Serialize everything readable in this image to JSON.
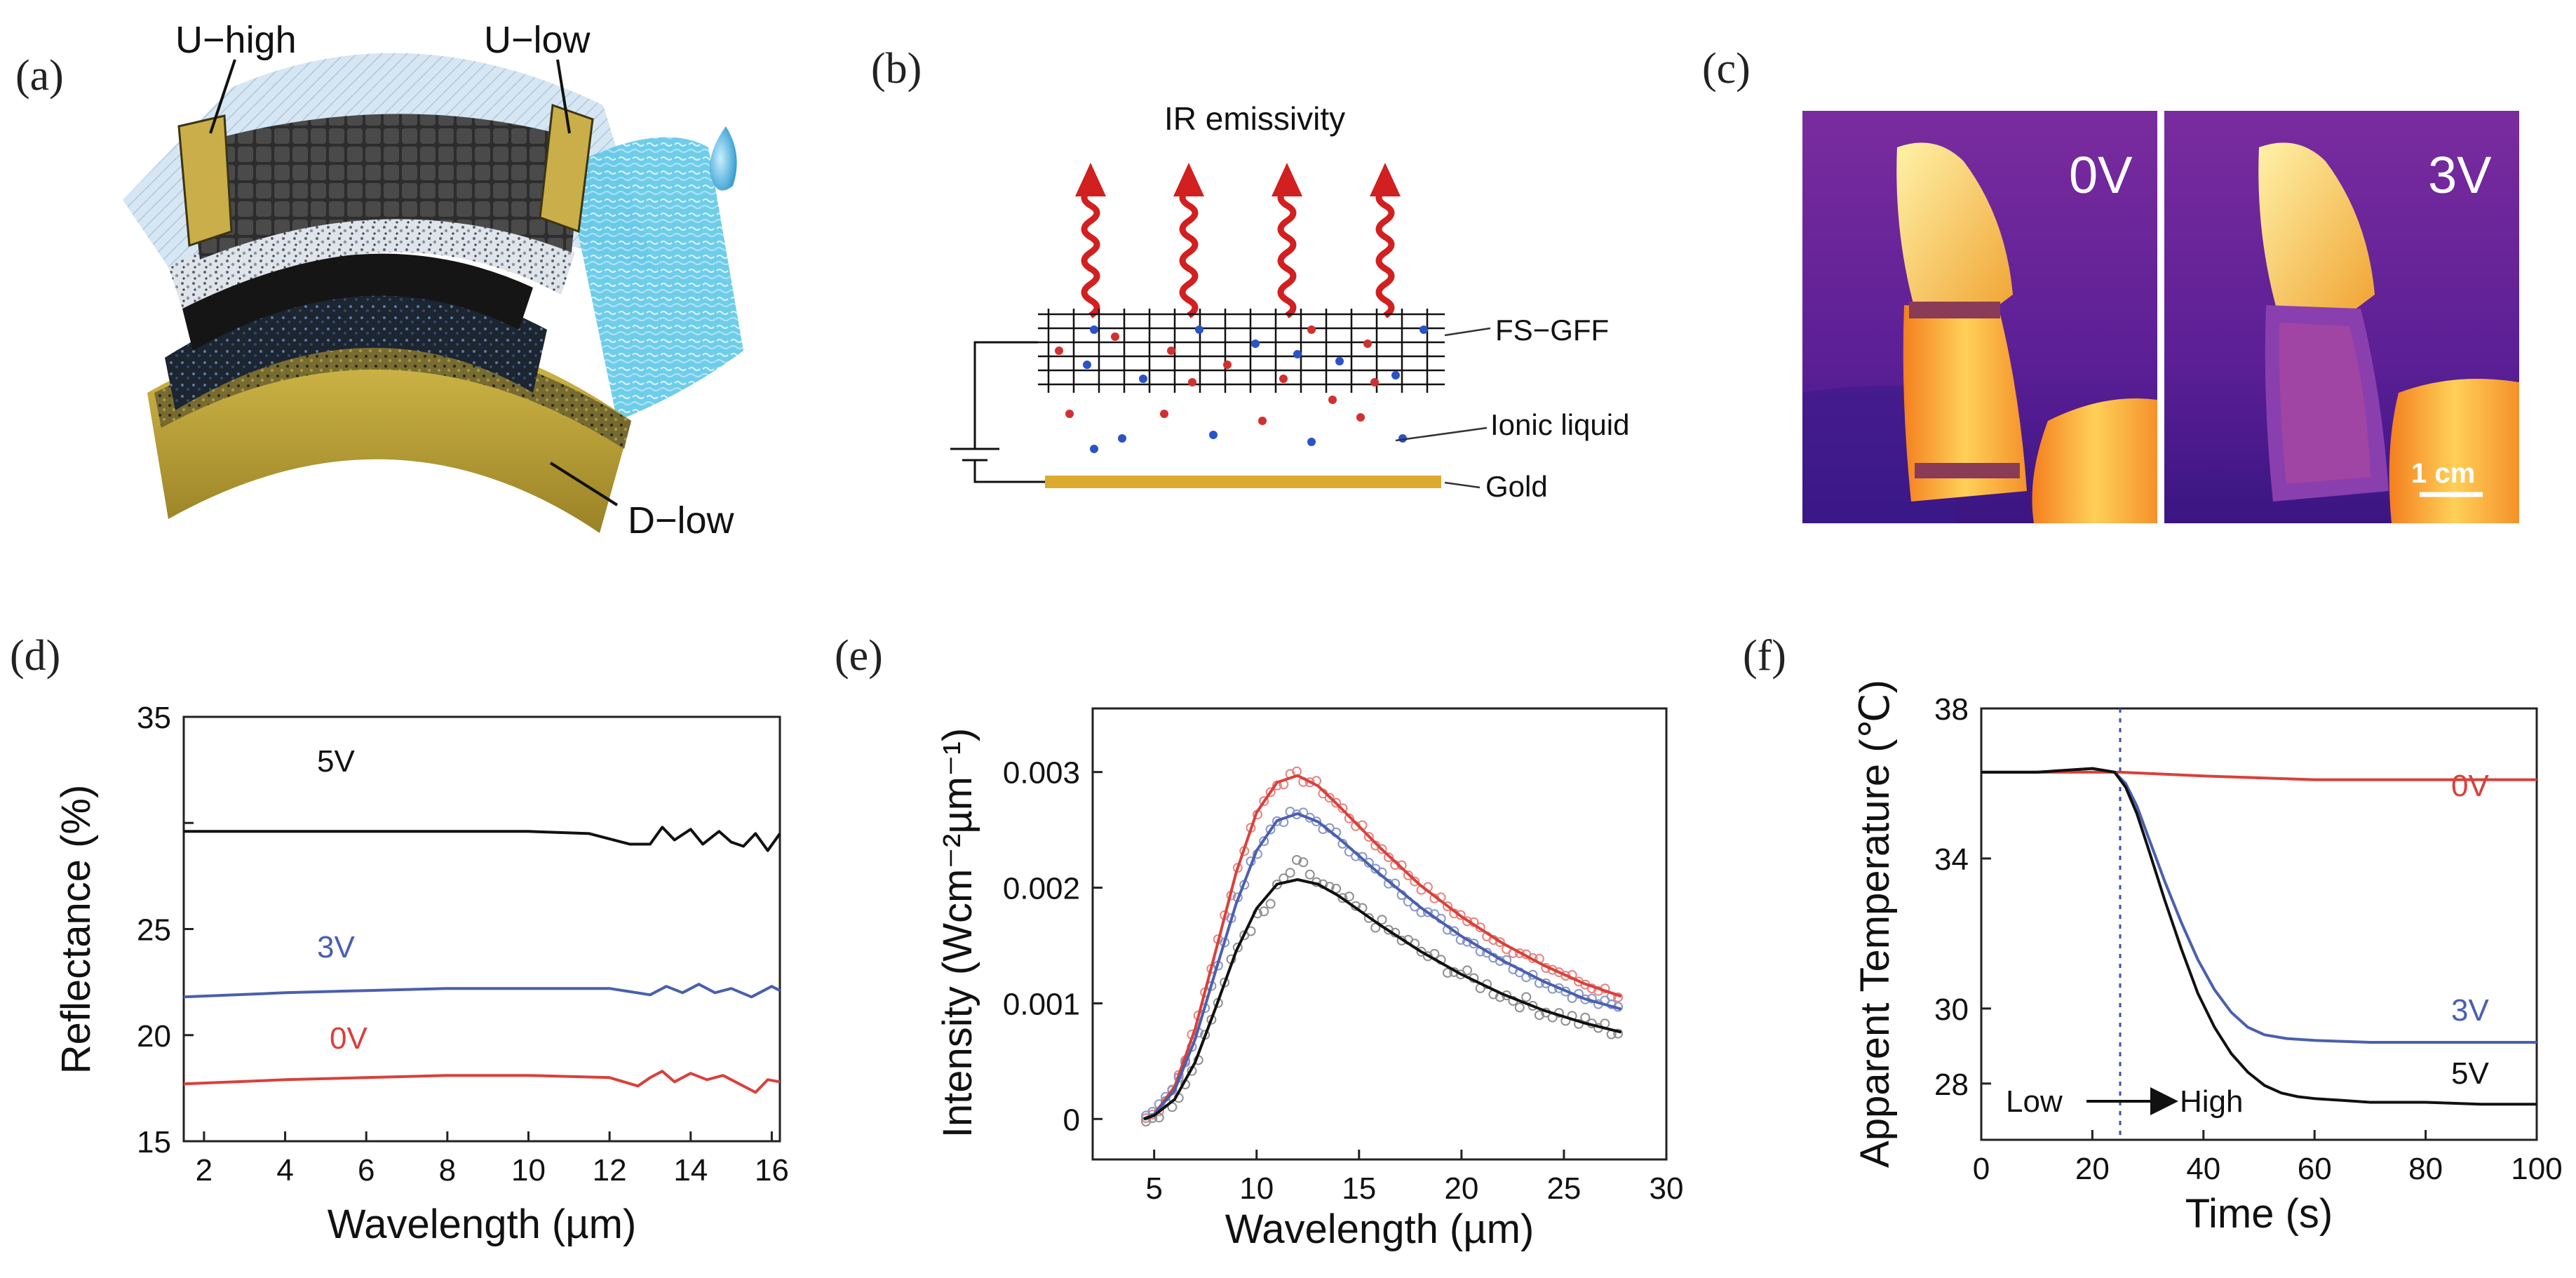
{
  "panel_labels": {
    "a": "(a)",
    "b": "(b)",
    "c": "(c)",
    "d": "(d)",
    "e": "(e)",
    "f": "(f)"
  },
  "panel_a": {
    "u_high": "U−high",
    "u_low": "U−low",
    "d_low": "D−low"
  },
  "panel_b": {
    "title": "IR emissivity",
    "fs_gff": "FS−GFF",
    "ionic_liquid": "Ionic liquid",
    "gold": "Gold"
  },
  "panel_c": {
    "left_label": "0V",
    "right_label": "3V",
    "scale_bar": "1 cm"
  },
  "colors": {
    "red": "#d9403a",
    "blue": "#4a5fae",
    "black": "#111111",
    "gold": "#d8ac3a",
    "arrow_red": "#d21f1f",
    "ion_red": "#d13030",
    "ion_blue": "#2b53c7"
  },
  "chart_data": [
    {
      "id": "d",
      "type": "line",
      "title": "",
      "xlabel": "Wavelength (µm)",
      "ylabel": "Reflectance (%)",
      "xlim": [
        1.5,
        16.2
      ],
      "ylim": [
        15,
        35
      ],
      "xticks": [
        2,
        4,
        6,
        8,
        10,
        12,
        14,
        16
      ],
      "yticks": [
        15,
        20,
        25,
        30,
        35
      ],
      "ytick_labels": [
        "15",
        "20",
        "25",
        "",
        "35"
      ],
      "series": [
        {
          "name": "5V",
          "color": "#111111",
          "x": [
            1.5,
            4,
            6,
            8,
            10,
            11.5,
            12.5,
            13,
            13.3,
            13.6,
            14,
            14.3,
            14.7,
            15,
            15.3,
            15.6,
            15.9,
            16.2
          ],
          "y": [
            29.6,
            29.6,
            29.6,
            29.6,
            29.6,
            29.5,
            29.0,
            29.0,
            29.8,
            29.2,
            29.7,
            29.0,
            29.6,
            29.1,
            28.9,
            29.5,
            28.7,
            29.5
          ]
        },
        {
          "name": "3V",
          "color": "#4a5fae",
          "x": [
            1.5,
            4,
            6,
            8,
            10,
            12,
            13,
            13.4,
            13.8,
            14.2,
            14.6,
            15,
            15.5,
            16,
            16.2
          ],
          "y": [
            21.8,
            22.0,
            22.1,
            22.2,
            22.2,
            22.2,
            21.9,
            22.3,
            22.0,
            22.4,
            22.0,
            22.2,
            21.8,
            22.3,
            22.1
          ]
        },
        {
          "name": "0V",
          "color": "#d9403a",
          "x": [
            1.5,
            4,
            6,
            8,
            10,
            12,
            12.7,
            13,
            13.3,
            13.6,
            14,
            14.4,
            14.8,
            15.2,
            15.6,
            15.9,
            16.2
          ],
          "y": [
            17.7,
            17.9,
            18.0,
            18.1,
            18.1,
            18.0,
            17.6,
            18.0,
            18.3,
            17.8,
            18.2,
            17.9,
            18.1,
            17.7,
            17.3,
            17.9,
            17.8
          ]
        }
      ],
      "labels": [
        "5V",
        "3V",
        "0V"
      ]
    },
    {
      "id": "e",
      "type": "line",
      "title": "",
      "xlabel": "Wavelength (µm)",
      "ylabel": "Intensity (Wcm⁻²µm⁻¹)",
      "xlim": [
        2,
        30
      ],
      "ylim": [
        -0.00035,
        0.00355
      ],
      "xticks": [
        5,
        10,
        15,
        20,
        25,
        30
      ],
      "yticks": [
        0,
        0.001,
        0.002,
        0.003
      ],
      "ytick_labels": [
        "0",
        "0.001",
        "0.002",
        "0.003"
      ],
      "series": [
        {
          "name": "red fit",
          "color": "#d9403a",
          "x": [
            4.5,
            5,
            6,
            7,
            8,
            9,
            10,
            11,
            12,
            13,
            14,
            16,
            18,
            20,
            22,
            24,
            26,
            27.8
          ],
          "y": [
            0,
            4e-05,
            0.00028,
            0.00078,
            0.00145,
            0.00213,
            0.00265,
            0.00291,
            0.00297,
            0.00288,
            0.00271,
            0.00235,
            0.00202,
            0.00175,
            0.00152,
            0.00133,
            0.00117,
            0.00106
          ]
        },
        {
          "name": "blue fit",
          "color": "#4a5fae",
          "x": [
            4.5,
            5,
            6,
            7,
            8,
            9,
            10,
            11,
            12,
            13,
            14,
            16,
            18,
            20,
            22,
            24,
            26,
            27.8
          ],
          "y": [
            0,
            4e-05,
            0.00025,
            0.00069,
            0.00128,
            0.00186,
            0.00232,
            0.00258,
            0.00264,
            0.00257,
            0.00243,
            0.00212,
            0.00183,
            0.00158,
            0.00137,
            0.00119,
            0.00104,
            0.00095
          ]
        },
        {
          "name": "black fit",
          "color": "#111111",
          "x": [
            4.5,
            5,
            6,
            7,
            8,
            9,
            10,
            11,
            12,
            13,
            14,
            16,
            18,
            20,
            22,
            24,
            26,
            27.8
          ],
          "y": [
            0,
            3e-05,
            0.00017,
            0.00049,
            0.00096,
            0.00145,
            0.00182,
            0.00203,
            0.00207,
            0.00203,
            0.00193,
            0.00168,
            0.00145,
            0.00125,
            0.00108,
            0.00094,
            0.00083,
            0.00075
          ]
        }
      ],
      "scatter": [
        {
          "name": "red data",
          "color": "#e8827e",
          "from": 4.6,
          "to": 27.7,
          "step": 0.32,
          "ref": "red fit",
          "noise": 4e-05
        },
        {
          "name": "blue data",
          "color": "#8a97c8",
          "from": 4.6,
          "to": 27.7,
          "step": 0.32,
          "ref": "blue fit",
          "noise": 4e-05
        },
        {
          "name": "black data",
          "color": "#8f8f8f",
          "from": 4.6,
          "to": 27.7,
          "step": 0.32,
          "ref": "black fit",
          "noise": 6e-05
        }
      ]
    },
    {
      "id": "f",
      "type": "line",
      "title": "",
      "xlabel": "Time (s)",
      "ylabel": "Apparent Temperature (℃)",
      "xlim": [
        0,
        100
      ],
      "ylim": [
        26.5,
        38
      ],
      "xticks": [
        0,
        20,
        40,
        60,
        80,
        100
      ],
      "yticks": [
        28,
        30,
        34,
        38
      ],
      "ytick_labels": [
        "28",
        "30",
        "34",
        "38"
      ],
      "vline_x": 25,
      "series": [
        {
          "name": "0V",
          "color": "#d9403a",
          "x": [
            0,
            10,
            20,
            25,
            40,
            60,
            80,
            100
          ],
          "y": [
            36.3,
            36.3,
            36.3,
            36.3,
            36.2,
            36.1,
            36.1,
            36.1
          ]
        },
        {
          "name": "3V",
          "color": "#4a5fae",
          "x": [
            0,
            10,
            20,
            24,
            26,
            28,
            30,
            33,
            36,
            39,
            42,
            45,
            48,
            51,
            55,
            60,
            70,
            80,
            90,
            100
          ],
          "y": [
            36.3,
            36.3,
            36.4,
            36.3,
            36.0,
            35.4,
            34.6,
            33.4,
            32.3,
            31.3,
            30.5,
            29.9,
            29.5,
            29.3,
            29.2,
            29.15,
            29.1,
            29.1,
            29.1,
            29.1
          ]
        },
        {
          "name": "5V",
          "color": "#111111",
          "x": [
            0,
            10,
            20,
            24,
            26,
            28,
            30,
            33,
            36,
            39,
            42,
            45,
            48,
            51,
            54,
            57,
            60,
            65,
            70,
            80,
            90,
            100
          ],
          "y": [
            36.3,
            36.3,
            36.4,
            36.3,
            35.9,
            35.2,
            34.3,
            32.9,
            31.6,
            30.4,
            29.5,
            28.8,
            28.3,
            27.95,
            27.75,
            27.65,
            27.6,
            27.55,
            27.5,
            27.5,
            27.45,
            27.45
          ]
        }
      ],
      "labels": [
        "0V",
        "3V",
        "5V"
      ],
      "annotation": {
        "low": "Low",
        "high": "High"
      }
    }
  ]
}
